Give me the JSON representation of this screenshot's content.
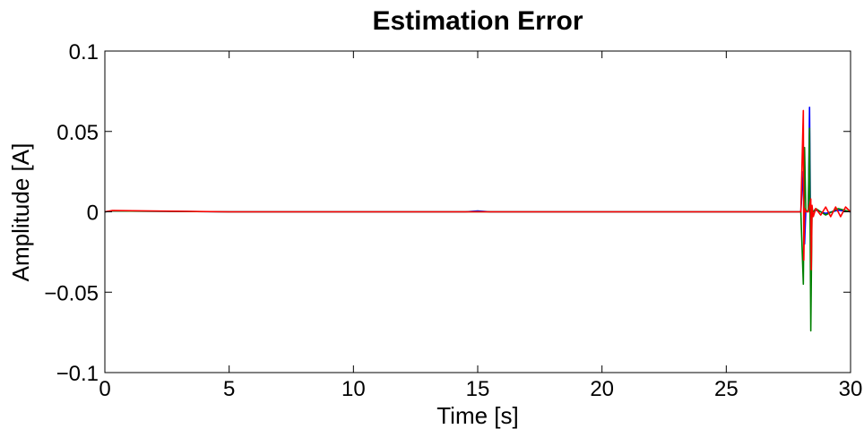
{
  "chart_data": {
    "type": "line",
    "title": "Estimation Error",
    "xlabel": "Time [s]",
    "ylabel": "Amplitude [A]",
    "xlim": [
      0,
      30
    ],
    "ylim": [
      -0.1,
      0.1
    ],
    "x_ticks": [
      0,
      5,
      10,
      15,
      20,
      25,
      30
    ],
    "x_tick_labels": [
      "0",
      "5",
      "10",
      "15",
      "20",
      "25",
      "30"
    ],
    "y_ticks": [
      0.1,
      0.05,
      0,
      -0.05,
      -0.1
    ],
    "y_tick_labels": [
      "0.1",
      "0.05",
      "0",
      "−0.05",
      "−0.1"
    ],
    "grid": false,
    "legend": "none",
    "series": [
      {
        "color": "#0000ff",
        "x": [
          0,
          0.3,
          5,
          10,
          14.5,
          15,
          15.5,
          20,
          25,
          28.0,
          28.1,
          28.15,
          28.2,
          28.3,
          28.35,
          28.4,
          28.45,
          28.5,
          28.6,
          29,
          29.5,
          30
        ],
        "y": [
          0,
          0.0005,
          0,
          0,
          0,
          0.0005,
          0,
          0,
          0,
          0,
          0.025,
          -0.02,
          0.001,
          0,
          0.065,
          -0.03,
          0.001,
          0,
          0.001,
          -0.001,
          0.001,
          0
        ]
      },
      {
        "color": "#008000",
        "x": [
          0,
          0.3,
          5,
          10,
          15,
          20,
          25,
          28.0,
          28.1,
          28.15,
          28.2,
          28.3,
          28.35,
          28.4,
          28.45,
          28.5,
          28.6,
          29,
          29.5,
          30
        ],
        "y": [
          0,
          0.0005,
          0,
          0,
          0,
          0,
          0,
          0,
          -0.045,
          0.04,
          0.001,
          0,
          0.052,
          -0.074,
          0.001,
          0,
          0.002,
          -0.002,
          0.002,
          0
        ]
      },
      {
        "color": "#ff0000",
        "x": [
          0,
          0.3,
          5,
          10,
          15,
          20,
          25,
          28.0,
          28.1,
          28.12,
          28.15,
          28.2,
          28.3,
          28.4,
          28.42,
          28.45,
          28.5,
          28.6,
          28.8,
          29,
          29.2,
          29.4,
          29.6,
          29.8,
          30
        ],
        "y": [
          0,
          0.0008,
          0,
          0,
          0,
          0,
          0,
          0,
          0.063,
          -0.03,
          0.002,
          0,
          0,
          0.008,
          -0.036,
          0.004,
          -0.003,
          0.002,
          -0.002,
          0.003,
          -0.003,
          0.003,
          -0.003,
          0.003,
          0
        ]
      }
    ]
  }
}
